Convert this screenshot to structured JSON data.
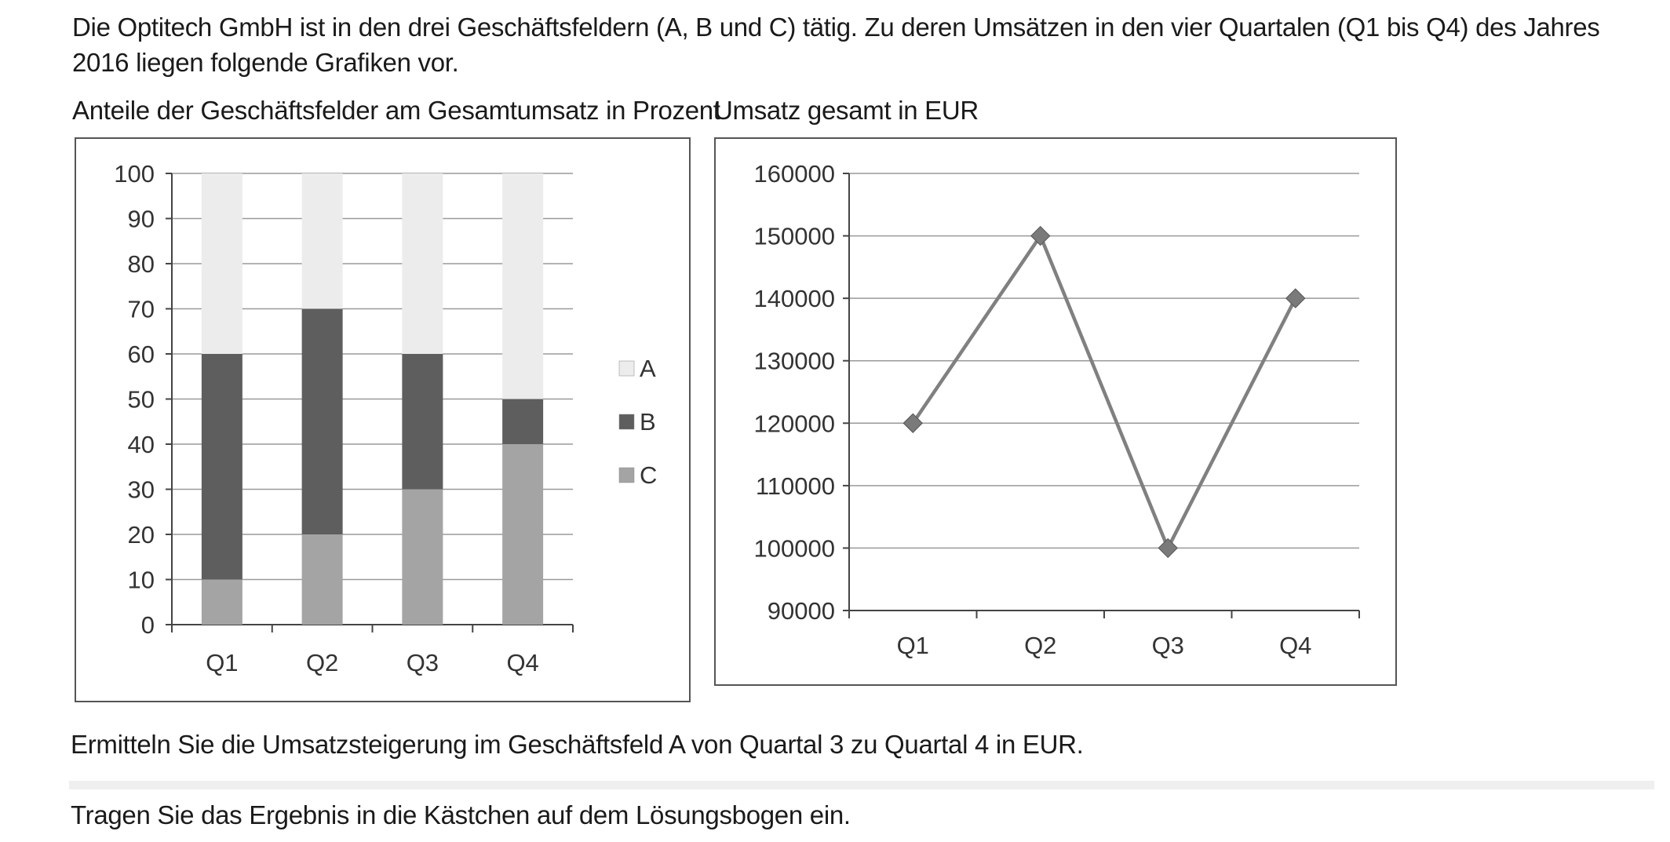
{
  "intro_text": "Die Optitech GmbH ist in den drei Geschäftsfeldern (A, B und C) tätig. Zu deren Umsätzen in den vier Quartalen (Q1 bis Q4) des Jahres 2016 liegen folgende Grafiken vor.",
  "question_1": "Ermitteln Sie die Umsatzsteigerung im Geschäftsfeld A von Quartal 3 zu Quartal 4 in EUR.",
  "question_2": "Tragen Sie das Ergebnis in die Kästchen auf dem Lösungsbogen ein.",
  "colors": {
    "A": "#ececec",
    "B": "#5e5e5e",
    "C": "#a4a4a4",
    "line": "#808080",
    "marker": "#7a7a7a"
  },
  "chart_data": [
    {
      "type": "bar",
      "stacked": true,
      "title": "Anteile der Geschäftsfelder am Gesamtumsatz in Prozent",
      "categories": [
        "Q1",
        "Q2",
        "Q3",
        "Q4"
      ],
      "series": [
        {
          "name": "C",
          "values": [
            10,
            20,
            30,
            40
          ]
        },
        {
          "name": "B",
          "values": [
            50,
            50,
            30,
            10
          ]
        },
        {
          "name": "A",
          "values": [
            40,
            30,
            40,
            50
          ]
        }
      ],
      "legend": [
        "A",
        "B",
        "C"
      ],
      "legend_position": "right",
      "ylim": [
        0,
        100
      ],
      "yticks": [
        "0",
        "10",
        "20",
        "30",
        "40",
        "50",
        "60",
        "70",
        "80",
        "90",
        "100"
      ],
      "grid": true
    },
    {
      "type": "line",
      "title": "Umsatz gesamt in EUR",
      "categories": [
        "Q1",
        "Q2",
        "Q3",
        "Q4"
      ],
      "values": [
        120000,
        150000,
        100000,
        140000
      ],
      "ylim": [
        90000,
        160000
      ],
      "yticks": [
        "90000",
        "100000",
        "110000",
        "120000",
        "130000",
        "140000",
        "150000",
        "160000"
      ],
      "marker": "diamond",
      "grid": true
    }
  ]
}
